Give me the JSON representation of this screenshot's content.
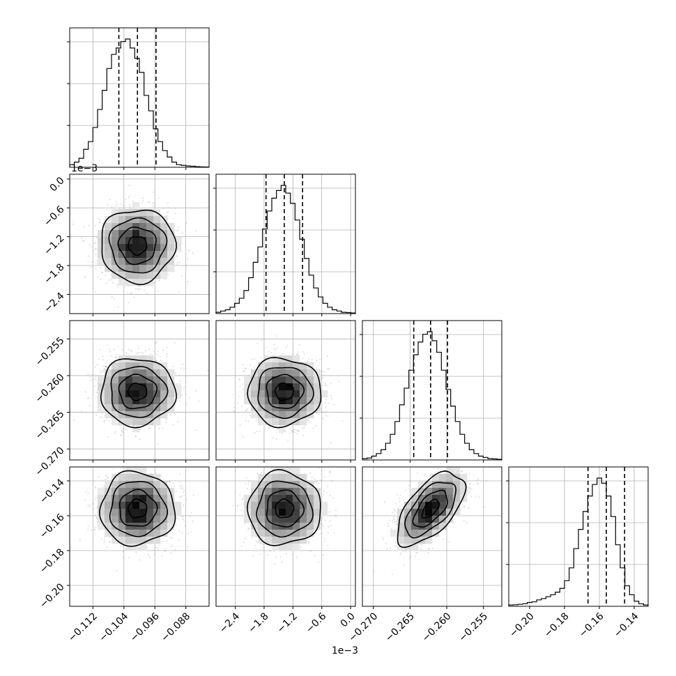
{
  "chart_data": {
    "type": "corner",
    "parameters": 4,
    "grid": true,
    "colors": {
      "line": "#000000",
      "quantile_line": "#000000",
      "grid": "#b0b0b0",
      "points": "#8a8a8a",
      "frame": "#000000"
    },
    "axes": [
      {
        "range": [
          -0.118,
          -0.082
        ],
        "ticks": [
          -0.112,
          -0.104,
          -0.096,
          -0.088
        ],
        "tick_labels": [
          "−0.112",
          "−0.104",
          "−0.096",
          "−0.088"
        ],
        "offset_label": "",
        "mean": -0.1005,
        "sigma": 0.0048,
        "quantiles": [
          -0.1053,
          -0.1005,
          -0.0957
        ]
      },
      {
        "range": [
          -2.8,
          0.1
        ],
        "ticks": [
          -2.4,
          -1.8,
          -1.2,
          -0.6,
          0.0
        ],
        "tick_labels": [
          "−2.4",
          "−1.8",
          "−1.2",
          "−0.6",
          "0.0"
        ],
        "offset_label": "1e−3",
        "mean": -1.38,
        "sigma": 0.38,
        "quantiles": [
          -1.76,
          -1.38,
          -1.0
        ]
      },
      {
        "range": [
          -0.2715,
          -0.2525
        ],
        "ticks": [
          -0.27,
          -0.265,
          -0.26,
          -0.255
        ],
        "tick_labels": [
          "−0.270",
          "−0.265",
          "−0.260",
          "−0.255"
        ],
        "offset_label": "",
        "mean": -0.2622,
        "sigma": 0.0023,
        "quantiles": [
          -0.2645,
          -0.2622,
          -0.2599
        ]
      },
      {
        "range": [
          -0.212,
          -0.132
        ],
        "ticks": [
          -0.2,
          -0.18,
          -0.16,
          -0.14
        ],
        "tick_labels": [
          "−0.20",
          "−0.18",
          "−0.16",
          "−0.14"
        ],
        "offset_label": "",
        "mean": -0.156,
        "sigma": 0.0105,
        "quantiles": [
          -0.1665,
          -0.156,
          -0.1455
        ]
      }
    ],
    "histograms": [
      {
        "bins": 30,
        "counts_relative": [
          0.02,
          0.04,
          0.07,
          0.14,
          0.2,
          0.31,
          0.45,
          0.6,
          0.77,
          0.88,
          0.93,
          0.98,
          1.0,
          0.93,
          0.85,
          0.74,
          0.56,
          0.44,
          0.3,
          0.2,
          0.13,
          0.08,
          0.04,
          0.02,
          0.015,
          0.01,
          0.008,
          0.005,
          0.003,
          0.002
        ]
      },
      {
        "bins": 30,
        "counts_relative": [
          0.01,
          0.02,
          0.03,
          0.05,
          0.08,
          0.12,
          0.18,
          0.28,
          0.4,
          0.52,
          0.66,
          0.8,
          0.9,
          0.96,
          1.0,
          0.94,
          0.86,
          0.73,
          0.58,
          0.43,
          0.3,
          0.2,
          0.13,
          0.08,
          0.05,
          0.03,
          0.02,
          0.01,
          0.008,
          0.005
        ]
      },
      {
        "bins": 30,
        "counts_relative": [
          0.01,
          0.015,
          0.03,
          0.05,
          0.08,
          0.13,
          0.2,
          0.3,
          0.43,
          0.56,
          0.7,
          0.82,
          0.92,
          0.98,
          1.0,
          0.93,
          0.84,
          0.7,
          0.55,
          0.42,
          0.3,
          0.2,
          0.13,
          0.08,
          0.05,
          0.03,
          0.02,
          0.01,
          0.008,
          0.005
        ]
      },
      {
        "bins": 30,
        "counts_relative": [
          0.01,
          0.012,
          0.016,
          0.02,
          0.03,
          0.035,
          0.05,
          0.06,
          0.075,
          0.09,
          0.11,
          0.14,
          0.2,
          0.3,
          0.45,
          0.6,
          0.74,
          0.86,
          0.95,
          1.0,
          0.96,
          0.86,
          0.7,
          0.48,
          0.3,
          0.16,
          0.09,
          0.04,
          0.02,
          0.01
        ]
      }
    ],
    "correlations": {
      "1-0": 0.0,
      "2-0": 0.0,
      "2-1": 0.0,
      "3-0": 0.0,
      "3-1": 0.0,
      "3-2": 0.6
    },
    "contour_levels_sigma": [
      0.5,
      1.0,
      1.5,
      2.0
    ]
  }
}
